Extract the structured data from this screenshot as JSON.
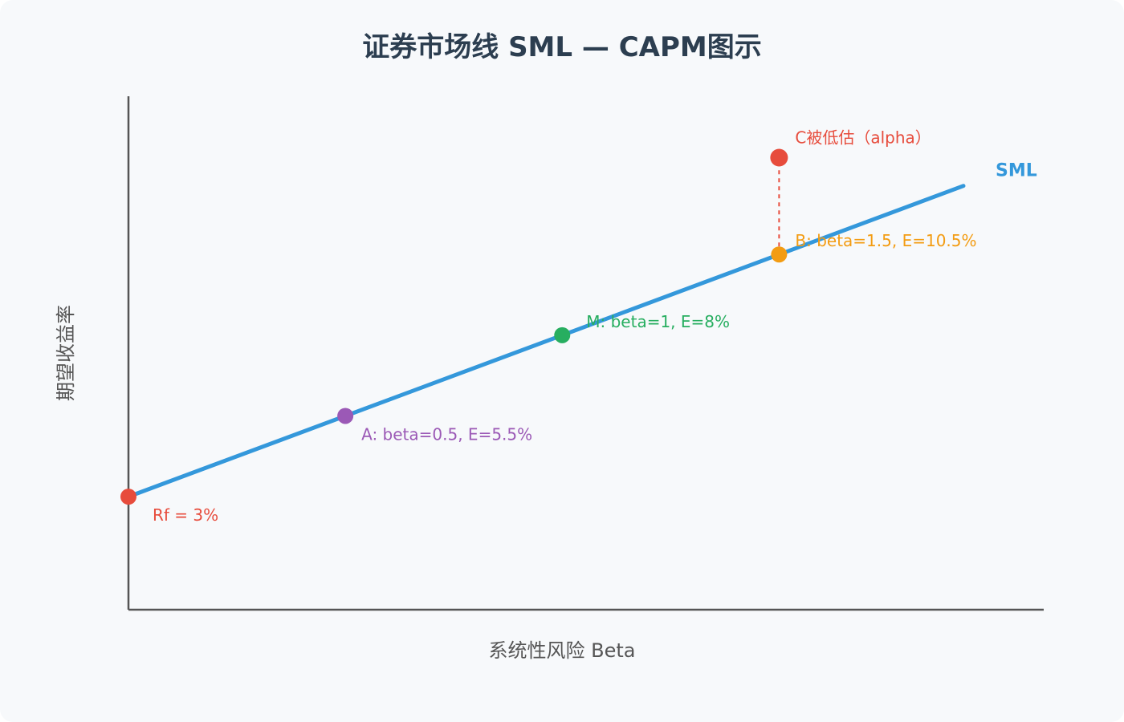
{
  "chart_data": {
    "type": "line",
    "title": "证券市场线 SML — CAPM图示",
    "xlabel": "系统性风险 Beta",
    "ylabel": "期望收益率",
    "xlim": [
      0,
      1.925
    ],
    "ylim": [
      -0.5,
      15.4
    ],
    "grid": false,
    "series": [
      {
        "name": "SML",
        "color": "#3498db",
        "x": [
          0,
          1.925
        ],
        "y": [
          3,
          12.625
        ]
      }
    ],
    "points": [
      {
        "label": "Rf = 3%",
        "x": 0,
        "y": 3,
        "color": "#e74c3c"
      },
      {
        "label": "A: beta=0.5, E=5.5%",
        "x": 0.5,
        "y": 5.5,
        "color": "#9b59b6"
      },
      {
        "label": "M: beta=1, E=8%",
        "x": 1,
        "y": 8,
        "color": "#27ae60"
      },
      {
        "label": "B: beta=1.5, E=10.5%",
        "x": 1.5,
        "y": 10.5,
        "color": "#f39c12"
      },
      {
        "label": "C被低估（alpha）",
        "x": 1.5,
        "y": 13.5,
        "color": "#e74c3c"
      }
    ],
    "alpha_line": {
      "x": 1.5,
      "y_from": 10.5,
      "y_to": 13.5,
      "color": "#e74c3c"
    }
  },
  "colors": {
    "axis": "#555555",
    "title": "#2c3e50",
    "background": "#f7f9fb"
  }
}
